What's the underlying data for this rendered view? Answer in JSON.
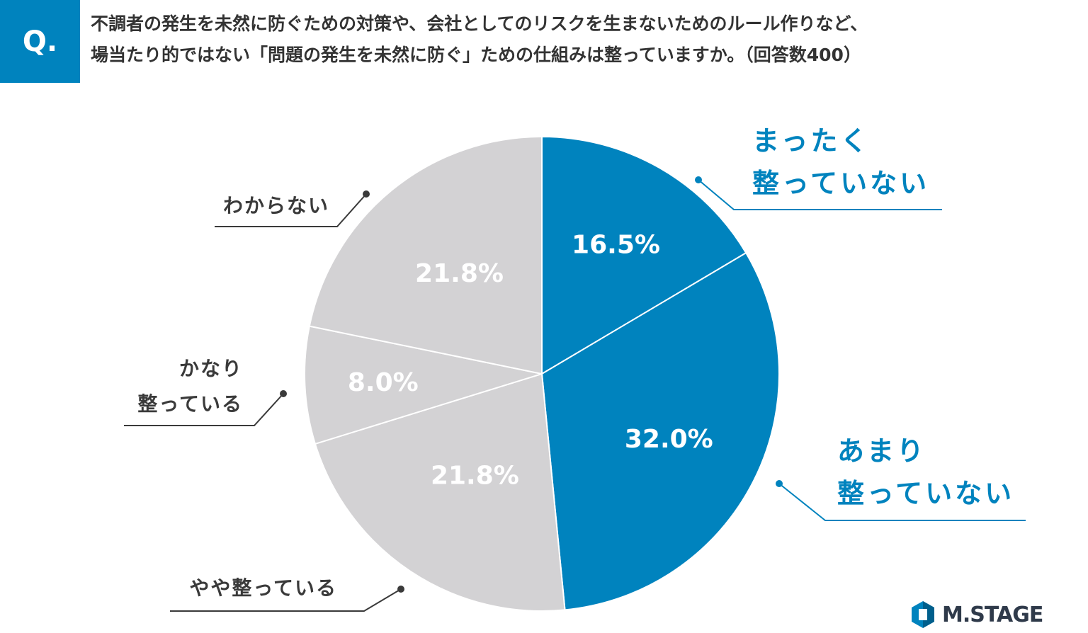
{
  "header": {
    "badge": "Q.",
    "question_line1": "不調者の発生を未然に防ぐための対策や、会社としてのリスクを生まないためのルール作りなど、",
    "question_line2": "場当たり的ではない「問題の発生を未然に防ぐ」ための仕組みは整っていますか。（回答数400）"
  },
  "chart_data": {
    "type": "pie",
    "slices": [
      {
        "label_lines": [
          "まったく",
          "整っていない"
        ],
        "value": 16.5,
        "display": "16.5%",
        "color": "#0083be",
        "label_color": "#0083be"
      },
      {
        "label_lines": [
          "あまり",
          "整っていない"
        ],
        "value": 32.0,
        "display": "32.0%",
        "color": "#0083be",
        "label_color": "#0083be"
      },
      {
        "label_lines": [
          "やや整っている"
        ],
        "value": 21.8,
        "display": "21.8%",
        "color": "#d3d2d4",
        "label_color": "#3a3a3a"
      },
      {
        "label_lines": [
          "かなり",
          "整っている"
        ],
        "value": 8.0,
        "display": "8.0%",
        "color": "#d3d2d4",
        "label_color": "#3a3a3a"
      },
      {
        "label_lines": [
          "わからない"
        ],
        "value": 21.8,
        "display": "21.8%",
        "color": "#d3d2d4",
        "label_color": "#3a3a3a"
      }
    ],
    "start": "12 o'clock",
    "direction": "clockwise"
  },
  "brand": {
    "name": "M.STAGE"
  }
}
